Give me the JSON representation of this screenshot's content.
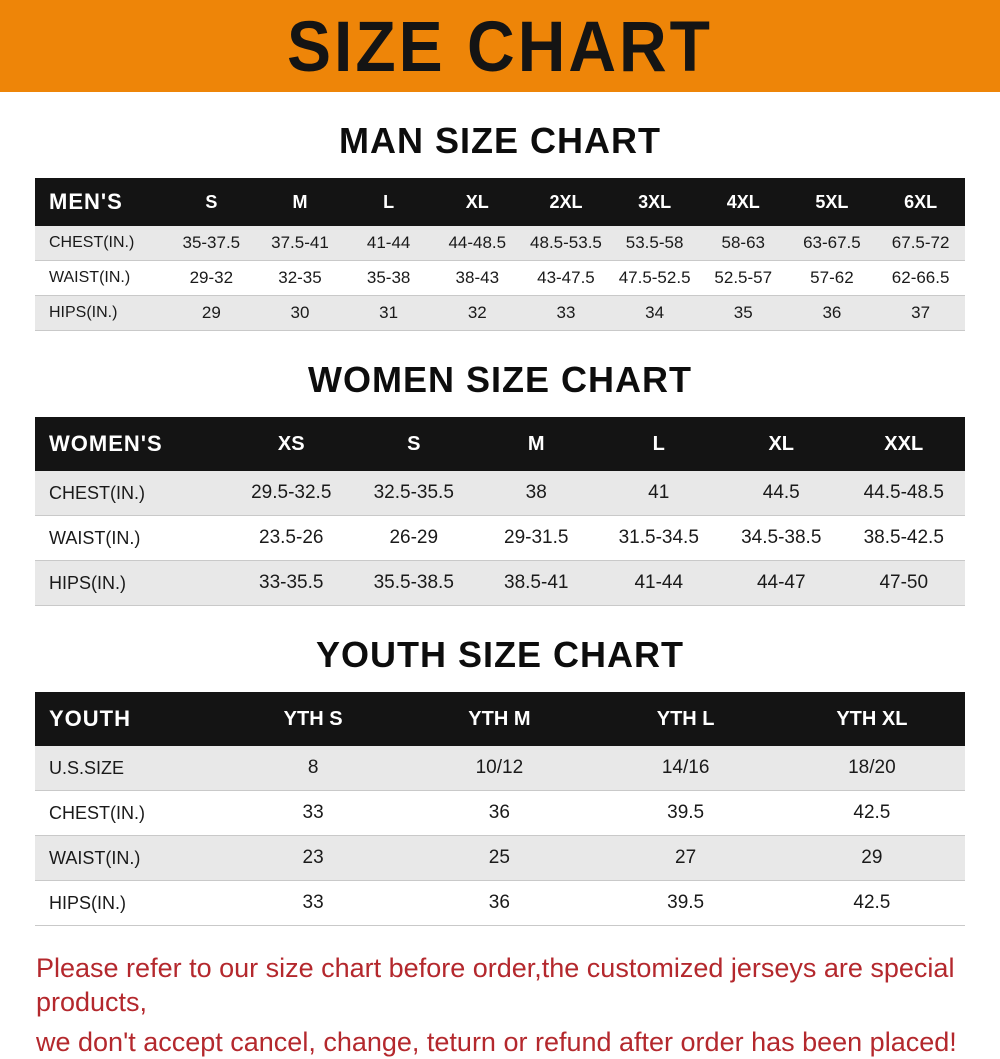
{
  "colors": {
    "banner_bg": "#ee8508",
    "banner_text": "#141414",
    "table_header_bg": "#141414",
    "table_header_text": "#ffffff",
    "row_alt_bg": "#e8e8e8",
    "note_text": "#b4282d"
  },
  "banner": {
    "title": "SIZE CHART"
  },
  "sections": [
    {
      "heading": "MAN SIZE CHART",
      "table": {
        "header": [
          "MEN'S",
          "S",
          "M",
          "L",
          "XL",
          "2XL",
          "3XL",
          "4XL",
          "5XL",
          "6XL"
        ],
        "rows": [
          [
            "CHEST(IN.)",
            "35-37.5",
            "37.5-41",
            "41-44",
            "44-48.5",
            "48.5-53.5",
            "53.5-58",
            "58-63",
            "63-67.5",
            "67.5-72"
          ],
          [
            "WAIST(IN.)",
            "29-32",
            "32-35",
            "35-38",
            "38-43",
            "43-47.5",
            "47.5-52.5",
            "52.5-57",
            "57-62",
            "62-66.5"
          ],
          [
            "HIPS(IN.)",
            "29",
            "30",
            "31",
            "32",
            "33",
            "34",
            "35",
            "36",
            "37"
          ]
        ]
      }
    },
    {
      "heading": "WOMEN SIZE CHART",
      "table": {
        "header": [
          "WOMEN'S",
          "XS",
          "S",
          "M",
          "L",
          "XL",
          "XXL"
        ],
        "rows": [
          [
            "CHEST(IN.)",
            "29.5-32.5",
            "32.5-35.5",
            "38",
            "41",
            "44.5",
            "44.5-48.5"
          ],
          [
            "WAIST(IN.)",
            "23.5-26",
            "26-29",
            "29-31.5",
            "31.5-34.5",
            "34.5-38.5",
            "38.5-42.5"
          ],
          [
            "HIPS(IN.)",
            "33-35.5",
            "35.5-38.5",
            "38.5-41",
            "41-44",
            "44-47",
            "47-50"
          ]
        ]
      }
    },
    {
      "heading": "YOUTH SIZE CHART",
      "table": {
        "header": [
          "YOUTH",
          "YTH S",
          "YTH M",
          "YTH L",
          "YTH XL"
        ],
        "rows": [
          [
            "U.S.SIZE",
            "8",
            "10/12",
            "14/16",
            "18/20"
          ],
          [
            "CHEST(IN.)",
            "33",
            "36",
            "39.5",
            "42.5"
          ],
          [
            "WAIST(IN.)",
            "23",
            "25",
            "27",
            "29"
          ],
          [
            "HIPS(IN.)",
            "33",
            "36",
            "39.5",
            "42.5"
          ]
        ]
      }
    }
  ],
  "note": {
    "line1": "Please refer to our size chart before order,the customized jerseys are special products,",
    "line2": "we don't accept cancel, change, teturn or refund after order has been placed!"
  }
}
